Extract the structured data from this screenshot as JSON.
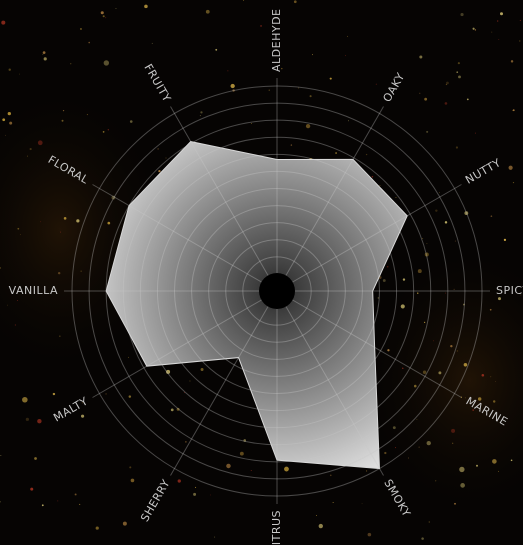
{
  "chart_data": {
    "type": "radar",
    "categories": [
      "ALDEHYDE",
      "OAKY",
      "NUTTY",
      "SPICY",
      "MARINE",
      "SMOKY",
      "CITRUS",
      "SHERRY",
      "MALTY",
      "VANILLA",
      "FLORAL",
      "FRUITY"
    ],
    "values": [
      7.7,
      8.9,
      8.8,
      5.6,
      6.6,
      12,
      9.9,
      4.5,
      8.8,
      10,
      10,
      10.1
    ],
    "ylim": [
      0,
      12
    ],
    "yticks": [
      1,
      2,
      3,
      4,
      5,
      6,
      7,
      8,
      9,
      10,
      11,
      12
    ],
    "grid": true,
    "color": "#d8d8d8"
  }
}
